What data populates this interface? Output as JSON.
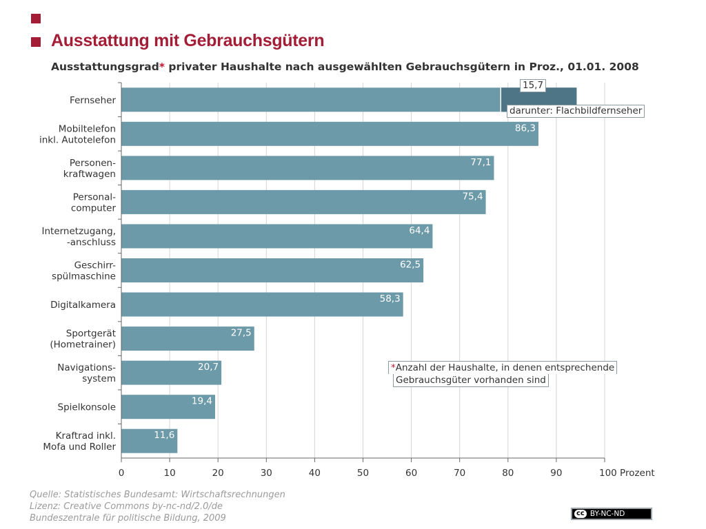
{
  "header": {
    "title": "Ausstattung mit Gebrauchsgütern",
    "subtitle_pre": "Ausstattungsgrad",
    "subtitle_star": "*",
    "subtitle_post": " privater Haushalte nach ausgewählten Gebrauchsgütern in Proz., 01.01. 2008"
  },
  "callout": {
    "value": "15,7",
    "label": "darunter: Flachbildfernseher"
  },
  "footnote": {
    "star": "*",
    "line1": "Anzahl der Haushalte, in denen entsprechende",
    "line2": "Gebrauchsgüter vorhanden sind"
  },
  "source": {
    "line1": "Quelle: Statistisches Bundesamt: Wirtschaftsrechnungen",
    "line2": "Lizenz: Creative Commons by-nc-nd/2.0/de",
    "line3": "Bundeszentrale für politische Bildung, 2009"
  },
  "license_badge": {
    "logo": "cc",
    "text": "BY-NC-ND"
  },
  "colors": {
    "bar": "#6d9aa8",
    "bar_highlight": "#4e7585",
    "accent": "#a31d36",
    "grid": "#d4d4d4"
  },
  "chart_data": {
    "type": "bar",
    "orientation": "horizontal",
    "categories": [
      [
        "Fernseher"
      ],
      [
        "Mobiltelefon",
        "inkl. Autotelefon"
      ],
      [
        "Personen-",
        "kraftwagen"
      ],
      [
        "Personal-",
        "computer"
      ],
      [
        "Internetzugang,",
        "-anschluss"
      ],
      [
        "Geschirr-",
        "spülmaschine"
      ],
      [
        "Digitalkamera"
      ],
      [
        "Sportgerät",
        "(Hometrainer)"
      ],
      [
        "Navigations-",
        "system"
      ],
      [
        "Spielkonsole"
      ],
      [
        "Kraftrad inkl.",
        "Mofa und Roller"
      ]
    ],
    "values": [
      94.2,
      86.3,
      77.1,
      75.4,
      64.4,
      62.5,
      58.3,
      27.5,
      20.7,
      19.4,
      11.6
    ],
    "value_labels": [
      "",
      "86,3",
      "77,1",
      "75,4",
      "64,4",
      "62,5",
      "58,3",
      "27,5",
      "20,7",
      "19,4",
      "11,6"
    ],
    "sub_series": {
      "name": "darunter: Flachbildfernseher",
      "category_index": 0,
      "value": 15.7
    },
    "xlim": [
      0,
      100
    ],
    "xticks": [
      "0",
      "10",
      "20",
      "30",
      "40",
      "50",
      "60",
      "70",
      "80",
      "90",
      "100 Prozent"
    ],
    "grid": true
  }
}
